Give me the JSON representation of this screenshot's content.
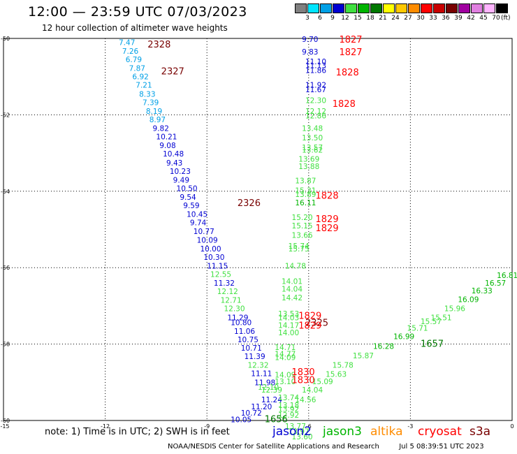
{
  "title": "12:00 — 23:59 UTC 07/03/2023",
  "subtitle": "12 hour collection of altimeter wave heights",
  "legend": {
    "units": "(ft)",
    "bins": [
      {
        "label": "3",
        "color": "#808080"
      },
      {
        "label": "6",
        "color": "#00e5ff"
      },
      {
        "label": "9",
        "color": "#00a0e6"
      },
      {
        "label": "12",
        "color": "#0000d2"
      },
      {
        "label": "15",
        "color": "#40e040"
      },
      {
        "label": "18",
        "color": "#00b400"
      },
      {
        "label": "21",
        "color": "#007800"
      },
      {
        "label": "24",
        "color": "#ffff00"
      },
      {
        "label": "27",
        "color": "#ffc800"
      },
      {
        "label": "30",
        "color": "#ff8c00"
      },
      {
        "label": "33",
        "color": "#ff0000"
      },
      {
        "label": "36",
        "color": "#c80000"
      },
      {
        "label": "39",
        "color": "#780000"
      },
      {
        "label": "42",
        "color": "#a000a0"
      },
      {
        "label": "45",
        "color": "#e080e0"
      },
      {
        "label": "70",
        "color": "#ffb4ff"
      },
      {
        "label": "",
        "color": "#000000"
      }
    ]
  },
  "axes": {
    "lon_labels": [
      "-15",
      "-12",
      "-9",
      "-6",
      "-3",
      "0"
    ],
    "lat_labels": [
      "-50",
      "-52",
      "-54",
      "-56",
      "-58",
      "-60"
    ]
  },
  "points": [
    {
      "lon": -11.6,
      "lat": -50.1,
      "t": "7.47",
      "c": "#00a0e6"
    },
    {
      "lon": -11.5,
      "lat": -50.33,
      "t": "7.26",
      "c": "#00a0e6"
    },
    {
      "lon": -11.4,
      "lat": -50.55,
      "t": "6.79",
      "c": "#00a0e6"
    },
    {
      "lon": -11.3,
      "lat": -50.78,
      "t": "7.87",
      "c": "#00a0e6"
    },
    {
      "lon": -11.2,
      "lat": -51.0,
      "t": "6.92",
      "c": "#00a0e6"
    },
    {
      "lon": -11.1,
      "lat": -51.22,
      "t": "7.21",
      "c": "#00a0e6"
    },
    {
      "lon": -11.0,
      "lat": -51.45,
      "t": "8.33",
      "c": "#00a0e6"
    },
    {
      "lon": -10.9,
      "lat": -51.67,
      "t": "7.39",
      "c": "#00a0e6"
    },
    {
      "lon": -10.8,
      "lat": -51.9,
      "t": "8.19",
      "c": "#00a0e6"
    },
    {
      "lon": -10.7,
      "lat": -52.12,
      "t": "8.97",
      "c": "#00a0e6"
    },
    {
      "lon": -10.6,
      "lat": -52.35,
      "t": "9.82",
      "c": "#0000d2"
    },
    {
      "lon": -10.5,
      "lat": -52.57,
      "t": "10.21",
      "c": "#0000d2"
    },
    {
      "lon": -10.4,
      "lat": -52.8,
      "t": "9.08",
      "c": "#0000d2"
    },
    {
      "lon": -10.3,
      "lat": -53.02,
      "t": "10.48",
      "c": "#0000d2"
    },
    {
      "lon": -10.2,
      "lat": -53.25,
      "t": "9.43",
      "c": "#0000d2"
    },
    {
      "lon": -10.1,
      "lat": -53.47,
      "t": "10.23",
      "c": "#0000d2"
    },
    {
      "lon": -10.0,
      "lat": -53.7,
      "t": "9.49",
      "c": "#0000d2"
    },
    {
      "lon": -9.9,
      "lat": -53.92,
      "t": "10.50",
      "c": "#0000d2"
    },
    {
      "lon": -9.8,
      "lat": -54.15,
      "t": "9.54",
      "c": "#0000d2"
    },
    {
      "lon": -9.7,
      "lat": -54.37,
      "t": "9.59",
      "c": "#0000d2"
    },
    {
      "lon": -9.6,
      "lat": -54.6,
      "t": "10.45",
      "c": "#0000d2"
    },
    {
      "lon": -9.5,
      "lat": -54.82,
      "t": "9.74",
      "c": "#0000d2"
    },
    {
      "lon": -9.4,
      "lat": -55.05,
      "t": "10.77",
      "c": "#0000d2"
    },
    {
      "lon": -9.3,
      "lat": -55.27,
      "t": "10.09",
      "c": "#0000d2"
    },
    {
      "lon": -9.2,
      "lat": -55.5,
      "t": "10.00",
      "c": "#0000d2"
    },
    {
      "lon": -9.1,
      "lat": -55.72,
      "t": "10.30",
      "c": "#0000d2"
    },
    {
      "lon": -9.0,
      "lat": -55.95,
      "t": "11.15",
      "c": "#0000d2"
    },
    {
      "lon": -8.9,
      "lat": -56.17,
      "t": "12.55",
      "c": "#40e040"
    },
    {
      "lon": -8.8,
      "lat": -56.4,
      "t": "11.32",
      "c": "#0000d2"
    },
    {
      "lon": -8.7,
      "lat": -56.62,
      "t": "12.12",
      "c": "#40e040"
    },
    {
      "lon": -8.6,
      "lat": -56.85,
      "t": "12.71",
      "c": "#40e040"
    },
    {
      "lon": -8.5,
      "lat": -57.07,
      "t": "12.30",
      "c": "#40e040"
    },
    {
      "lon": -8.4,
      "lat": -57.3,
      "t": "11.29",
      "c": "#0000d2"
    },
    {
      "lon": -8.3,
      "lat": -57.43,
      "t": "10.80",
      "c": "#0000d2"
    },
    {
      "lon": -8.2,
      "lat": -57.66,
      "t": "11.06",
      "c": "#0000d2"
    },
    {
      "lon": -8.1,
      "lat": -57.88,
      "t": "10.75",
      "c": "#0000d2"
    },
    {
      "lon": -8.0,
      "lat": -58.1,
      "t": "10.71",
      "c": "#0000d2"
    },
    {
      "lon": -7.9,
      "lat": -58.32,
      "t": "11.39",
      "c": "#0000d2"
    },
    {
      "lon": -7.8,
      "lat": -58.55,
      "t": "12.32",
      "c": "#40e040"
    },
    {
      "lon": -7.7,
      "lat": -58.77,
      "t": "11.11",
      "c": "#0000d2"
    },
    {
      "lon": -7.6,
      "lat": -59.0,
      "t": "11.98",
      "c": "#0000d2"
    },
    {
      "lon": -7.5,
      "lat": -59.12,
      "t": "12.10",
      "c": "#40e040"
    },
    {
      "lon": -7.4,
      "lat": -59.45,
      "t": "11.24",
      "c": "#0000d2"
    },
    {
      "lon": -7.7,
      "lat": -59.63,
      "t": "11.20",
      "c": "#0000d2"
    },
    {
      "lon": -8.0,
      "lat": -59.8,
      "t": "10.72",
      "c": "#0000d2"
    },
    {
      "lon": -8.3,
      "lat": -59.97,
      "t": "10.05",
      "c": "#0000d2"
    },
    {
      "lon": -7.4,
      "lat": -59.2,
      "t": "12.39",
      "c": "#40e040"
    },
    {
      "lon": -6.2,
      "lat": -50.02,
      "t": "9.70",
      "c": "#0000d2"
    },
    {
      "lon": -6.2,
      "lat": -50.35,
      "t": "9.83",
      "c": "#0000d2"
    },
    {
      "lon": -6.1,
      "lat": -50.6,
      "t": "11.10",
      "c": "#0000d2"
    },
    {
      "lon": -6.1,
      "lat": -50.7,
      "t": "11.13",
      "c": "#0000d2"
    },
    {
      "lon": -6.1,
      "lat": -50.83,
      "t": "11.86",
      "c": "#0000d2"
    },
    {
      "lon": -6.1,
      "lat": -51.22,
      "t": "11.92",
      "c": "#0000d2"
    },
    {
      "lon": -6.1,
      "lat": -51.33,
      "t": "11.67",
      "c": "#0000d2"
    },
    {
      "lon": -6.1,
      "lat": -51.62,
      "t": "12.30",
      "c": "#40e040"
    },
    {
      "lon": -6.1,
      "lat": -51.9,
      "t": "12.12",
      "c": "#40e040"
    },
    {
      "lon": -6.1,
      "lat": -52.02,
      "t": "12.86",
      "c": "#40e040"
    },
    {
      "lon": -6.2,
      "lat": -52.35,
      "t": "13.48",
      "c": "#40e040"
    },
    {
      "lon": -6.2,
      "lat": -52.6,
      "t": "13.50",
      "c": "#40e040"
    },
    {
      "lon": -6.2,
      "lat": -52.85,
      "t": "13.57",
      "c": "#40e040"
    },
    {
      "lon": -6.2,
      "lat": -52.92,
      "t": "13.62",
      "c": "#40e040"
    },
    {
      "lon": -6.3,
      "lat": -53.15,
      "t": "13.69",
      "c": "#40e040"
    },
    {
      "lon": -6.3,
      "lat": -53.35,
      "t": "13.88",
      "c": "#40e040"
    },
    {
      "lon": -6.4,
      "lat": -53.72,
      "t": "13.87",
      "c": "#40e040"
    },
    {
      "lon": -6.4,
      "lat": -53.98,
      "t": "15.31",
      "c": "#40e040"
    },
    {
      "lon": -6.4,
      "lat": -54.08,
      "t": "13.89",
      "c": "#40e040"
    },
    {
      "lon": -6.4,
      "lat": -54.3,
      "t": "16.11",
      "c": "#00b400"
    },
    {
      "lon": -6.5,
      "lat": -54.68,
      "t": "15.20",
      "c": "#40e040"
    },
    {
      "lon": -6.5,
      "lat": -54.9,
      "t": "15.15",
      "c": "#40e040"
    },
    {
      "lon": -6.5,
      "lat": -55.15,
      "t": "13.66",
      "c": "#40e040"
    },
    {
      "lon": -6.6,
      "lat": -55.43,
      "t": "15.74",
      "c": "#40e040"
    },
    {
      "lon": -6.6,
      "lat": -55.5,
      "t": "15.75",
      "c": "#40e040"
    },
    {
      "lon": -6.7,
      "lat": -55.95,
      "t": "14.78",
      "c": "#40e040"
    },
    {
      "lon": -6.8,
      "lat": -56.35,
      "t": "14.01",
      "c": "#40e040"
    },
    {
      "lon": -6.8,
      "lat": -56.55,
      "t": "14.04",
      "c": "#40e040"
    },
    {
      "lon": -6.8,
      "lat": -56.78,
      "t": "14.42",
      "c": "#40e040"
    },
    {
      "lon": -6.9,
      "lat": -57.2,
      "t": "13.53",
      "c": "#40e040"
    },
    {
      "lon": -6.9,
      "lat": -57.3,
      "t": "14.03",
      "c": "#40e040"
    },
    {
      "lon": -6.9,
      "lat": -57.5,
      "t": "14.17",
      "c": "#40e040"
    },
    {
      "lon": -6.9,
      "lat": -57.7,
      "t": "14.00",
      "c": "#40e040"
    },
    {
      "lon": -7.0,
      "lat": -58.08,
      "t": "14.71",
      "c": "#40e040"
    },
    {
      "lon": -7.0,
      "lat": -58.25,
      "t": "14.77",
      "c": "#40e040"
    },
    {
      "lon": -7.0,
      "lat": -58.35,
      "t": "14.09",
      "c": "#40e040"
    },
    {
      "lon": -7.0,
      "lat": -58.8,
      "t": "14.09",
      "c": "#40e040"
    },
    {
      "lon": -7.0,
      "lat": -58.98,
      "t": "13.10",
      "c": "#40e040"
    },
    {
      "lon": -6.9,
      "lat": -59.4,
      "t": "13.74",
      "c": "#40e040"
    },
    {
      "lon": -6.9,
      "lat": -59.6,
      "t": "13.18",
      "c": "#40e040"
    },
    {
      "lon": -6.9,
      "lat": -59.7,
      "t": "13.92",
      "c": "#40e040"
    },
    {
      "lon": -6.9,
      "lat": -59.85,
      "t": "12.92",
      "c": "#40e040"
    },
    {
      "lon": -6.7,
      "lat": -60.15,
      "t": "13.77",
      "c": "#40e040"
    },
    {
      "lon": -6.6,
      "lat": -60.28,
      "t": "13.97",
      "c": "#40e040"
    },
    {
      "lon": -6.5,
      "lat": -60.42,
      "t": "13.60",
      "c": "#40e040"
    },
    {
      "lon": -6.2,
      "lat": -59.2,
      "t": "14.04",
      "c": "#40e040"
    },
    {
      "lon": -6.4,
      "lat": -59.45,
      "t": "14.56",
      "c": "#40e040"
    },
    {
      "lon": -5.9,
      "lat": -58.98,
      "t": "15.09",
      "c": "#40e040"
    },
    {
      "lon": -5.5,
      "lat": -58.78,
      "t": "15.63",
      "c": "#40e040"
    },
    {
      "lon": -5.3,
      "lat": -58.55,
      "t": "15.78",
      "c": "#40e040"
    },
    {
      "lon": -4.7,
      "lat": -58.3,
      "t": "15.87",
      "c": "#40e040"
    },
    {
      "lon": -4.1,
      "lat": -58.05,
      "t": "16.28",
      "c": "#00b400"
    },
    {
      "lon": -3.5,
      "lat": -57.8,
      "t": "16.99",
      "c": "#00b400"
    },
    {
      "lon": -3.1,
      "lat": -57.58,
      "t": "15.71",
      "c": "#40e040"
    },
    {
      "lon": -2.7,
      "lat": -57.4,
      "t": "15.57",
      "c": "#40e040"
    },
    {
      "lon": -2.4,
      "lat": -57.3,
      "t": "15.51",
      "c": "#40e040"
    },
    {
      "lon": -2.0,
      "lat": -57.07,
      "t": "15.96",
      "c": "#40e040"
    },
    {
      "lon": -1.6,
      "lat": -56.83,
      "t": "16.09",
      "c": "#00b400"
    },
    {
      "lon": -1.2,
      "lat": -56.6,
      "t": "16.33",
      "c": "#00b400"
    },
    {
      "lon": -0.8,
      "lat": -56.4,
      "t": "16.57",
      "c": "#00b400"
    },
    {
      "lon": -0.45,
      "lat": -56.2,
      "t": "16.81",
      "c": "#00b400"
    }
  ],
  "track_tags": [
    {
      "lon": -10.75,
      "lat": -50.15,
      "t": "2328",
      "c": "#780000"
    },
    {
      "lon": -10.35,
      "lat": -50.85,
      "t": "2327",
      "c": "#780000"
    },
    {
      "lon": -8.1,
      "lat": -54.3,
      "t": "2326",
      "c": "#780000"
    },
    {
      "lon": -6.1,
      "lat": -57.43,
      "t": "2325",
      "c": "#780000"
    },
    {
      "lon": -5.1,
      "lat": -50.02,
      "t": "1827",
      "c": "#ff0000"
    },
    {
      "lon": -5.1,
      "lat": -50.35,
      "t": "1827",
      "c": "#ff0000"
    },
    {
      "lon": -5.2,
      "lat": -50.88,
      "t": "1828",
      "c": "#ff0000"
    },
    {
      "lon": -5.3,
      "lat": -51.7,
      "t": "1828",
      "c": "#ff0000"
    },
    {
      "lon": -5.8,
      "lat": -54.1,
      "t": "1828",
      "c": "#ff0000"
    },
    {
      "lon": -5.8,
      "lat": -54.72,
      "t": "1829",
      "c": "#ff0000"
    },
    {
      "lon": -5.8,
      "lat": -54.95,
      "t": "1829",
      "c": "#ff0000"
    },
    {
      "lon": -6.3,
      "lat": -57.25,
      "t": "1829",
      "c": "#ff0000"
    },
    {
      "lon": -6.3,
      "lat": -57.5,
      "t": "1829",
      "c": "#ff0000"
    },
    {
      "lon": -6.5,
      "lat": -58.72,
      "t": "1830",
      "c": "#ff0000"
    },
    {
      "lon": -6.5,
      "lat": -58.93,
      "t": "1830",
      "c": "#ff0000"
    },
    {
      "lon": -2.7,
      "lat": -57.98,
      "t": "1657",
      "c": "#007800"
    },
    {
      "lon": -7.3,
      "lat": -59.95,
      "t": "1656",
      "c": "#007800"
    }
  ],
  "footer": {
    "note": "note: 1) Time is in UTC; 2) SWH is in feet",
    "satellites": [
      {
        "name": "jason2",
        "color": "#0000d2"
      },
      {
        "name": "jason3",
        "color": "#00b400"
      },
      {
        "name": "altika",
        "color": "#ff8c00"
      },
      {
        "name": "cryosat",
        "color": "#ff0000"
      },
      {
        "name": "s3a",
        "color": "#780000"
      }
    ],
    "credit": "NOAA/NESDIS Center for Satellite Applications and Research",
    "timestamp": "Jul  5 08:39:51 UTC 2023"
  }
}
